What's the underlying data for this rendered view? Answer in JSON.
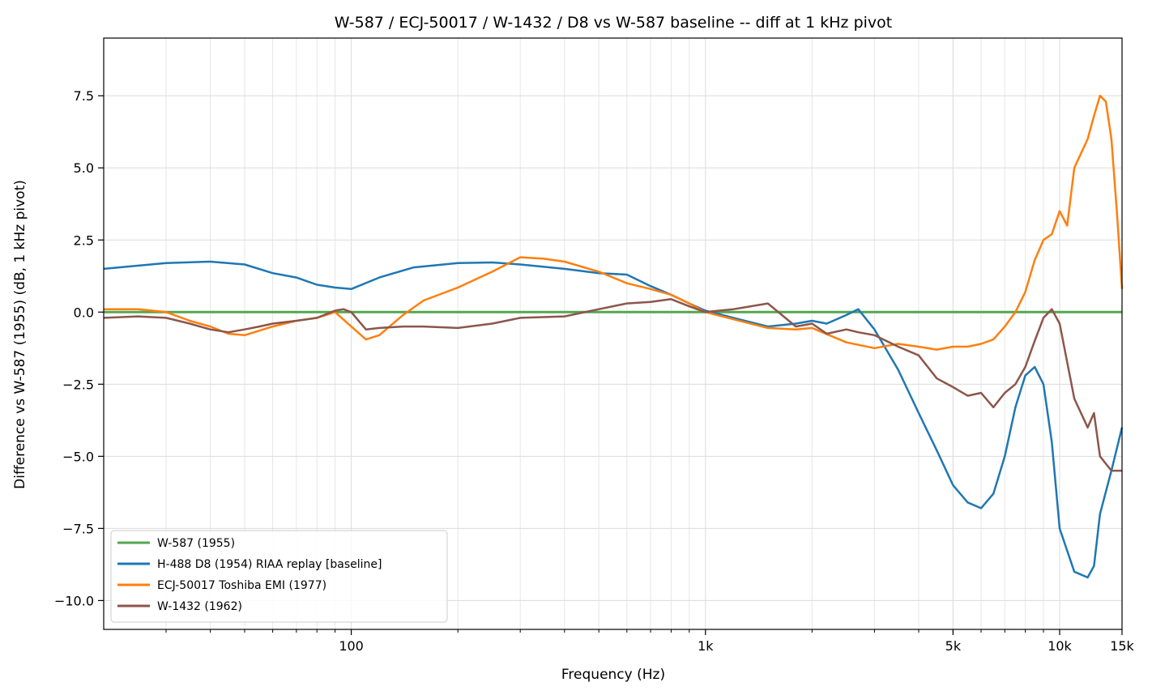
{
  "chart_data": {
    "type": "line",
    "title": "W-587 / ECJ-50017 / W-1432 / D8 vs W-587 baseline -- diff at 1 kHz pivot",
    "xlabel": "Frequency (Hz)",
    "ylabel": "Difference vs W-587 (1955) (dB, 1 kHz pivot)",
    "xscale": "log",
    "xlim": [
      20,
      15000
    ],
    "ylim": [
      -11,
      9.5
    ],
    "x_tick_values": [
      100,
      1000,
      5000,
      10000,
      15000
    ],
    "x_tick_labels": [
      "100",
      "1k",
      "5k",
      "10k",
      "15k"
    ],
    "y_tick_values": [
      7.5,
      5.0,
      2.5,
      0.0,
      -2.5,
      -5.0,
      -7.5,
      -10.0
    ],
    "y_tick_labels": [
      "7.5",
      "5.0",
      "2.5",
      "0.0",
      "−2.5",
      "−5.0",
      "−7.5",
      "−10.0"
    ],
    "grid": true,
    "legend_position": "bottom-left",
    "series": [
      {
        "name": "W-587 (1955)",
        "color": "#55a650",
        "x": [
          20,
          15000
        ],
        "y": [
          0,
          0
        ]
      },
      {
        "name": "H-488 D8 (1954) RIAA replay [baseline]",
        "color": "#1f77b4",
        "x": [
          20,
          30,
          40,
          50,
          60,
          70,
          80,
          90,
          100,
          120,
          150,
          200,
          250,
          300,
          400,
          500,
          600,
          700,
          800,
          900,
          1000,
          1200,
          1500,
          1800,
          2000,
          2200,
          2500,
          2700,
          3000,
          3500,
          4000,
          4500,
          5000,
          5500,
          6000,
          6500,
          7000,
          7500,
          8000,
          8500,
          9000,
          9500,
          10000,
          11000,
          12000,
          12500,
          13000,
          14000,
          15000
        ],
        "y": [
          1.5,
          1.7,
          1.75,
          1.65,
          1.35,
          1.2,
          0.95,
          0.85,
          0.8,
          1.2,
          1.55,
          1.7,
          1.72,
          1.65,
          1.5,
          1.35,
          1.3,
          0.9,
          0.6,
          0.3,
          0.05,
          -0.2,
          -0.5,
          -0.4,
          -0.3,
          -0.4,
          -0.1,
          0.1,
          -0.6,
          -2.0,
          -3.5,
          -4.8,
          -6.0,
          -6.6,
          -6.8,
          -6.3,
          -5.0,
          -3.3,
          -2.2,
          -1.9,
          -2.5,
          -4.5,
          -7.5,
          -9.0,
          -9.2,
          -8.8,
          -7.0,
          -5.5,
          -4.0
        ]
      },
      {
        "name": "ECJ-50017 Toshiba EMI (1977)",
        "color": "#ff7f0e",
        "x": [
          20,
          25,
          30,
          35,
          40,
          45,
          50,
          60,
          70,
          80,
          90,
          100,
          110,
          120,
          140,
          160,
          200,
          250,
          300,
          350,
          400,
          500,
          600,
          700,
          800,
          900,
          1000,
          1200,
          1500,
          1800,
          2000,
          2500,
          3000,
          3500,
          4000,
          4500,
          5000,
          5500,
          6000,
          6500,
          7000,
          7500,
          8000,
          8500,
          9000,
          9500,
          10000,
          10500,
          11000,
          12000,
          12500,
          13000,
          13500,
          14000,
          14500,
          15000
        ],
        "y": [
          0.1,
          0.1,
          0.0,
          -0.3,
          -0.5,
          -0.75,
          -0.8,
          -0.5,
          -0.3,
          -0.2,
          0.0,
          -0.5,
          -0.95,
          -0.8,
          -0.1,
          0.4,
          0.85,
          1.4,
          1.9,
          1.85,
          1.75,
          1.4,
          1.0,
          0.8,
          0.6,
          0.3,
          0.0,
          -0.25,
          -0.55,
          -0.6,
          -0.55,
          -1.05,
          -1.25,
          -1.1,
          -1.2,
          -1.3,
          -1.2,
          -1.2,
          -1.1,
          -0.95,
          -0.5,
          0.0,
          0.7,
          1.8,
          2.5,
          2.7,
          3.5,
          3.0,
          5.0,
          6.0,
          6.8,
          7.5,
          7.3,
          6.0,
          3.5,
          0.8
        ]
      },
      {
        "name": "W-1432 (1962)",
        "color": "#8c564b",
        "x": [
          20,
          25,
          30,
          35,
          40,
          45,
          50,
          55,
          60,
          70,
          80,
          90,
          95,
          100,
          110,
          120,
          140,
          160,
          200,
          250,
          300,
          400,
          500,
          600,
          700,
          800,
          900,
          1000,
          1200,
          1500,
          1800,
          2000,
          2200,
          2500,
          2700,
          3000,
          3500,
          4000,
          4500,
          5000,
          5500,
          6000,
          6500,
          7000,
          7500,
          8000,
          8500,
          9000,
          9500,
          10000,
          11000,
          12000,
          12500,
          13000,
          14000,
          15000
        ],
        "y": [
          -0.2,
          -0.15,
          -0.2,
          -0.4,
          -0.6,
          -0.7,
          -0.6,
          -0.5,
          -0.4,
          -0.3,
          -0.2,
          0.05,
          0.1,
          0.0,
          -0.6,
          -0.55,
          -0.5,
          -0.5,
          -0.55,
          -0.4,
          -0.2,
          -0.15,
          0.1,
          0.3,
          0.35,
          0.45,
          0.2,
          0.0,
          0.1,
          0.3,
          -0.5,
          -0.4,
          -0.75,
          -0.6,
          -0.7,
          -0.8,
          -1.2,
          -1.5,
          -2.3,
          -2.6,
          -2.9,
          -2.8,
          -3.3,
          -2.8,
          -2.5,
          -1.9,
          -1.0,
          -0.2,
          0.1,
          -0.4,
          -3.0,
          -4.0,
          -3.5,
          -5.0,
          -5.5,
          -5.5
        ]
      }
    ]
  }
}
